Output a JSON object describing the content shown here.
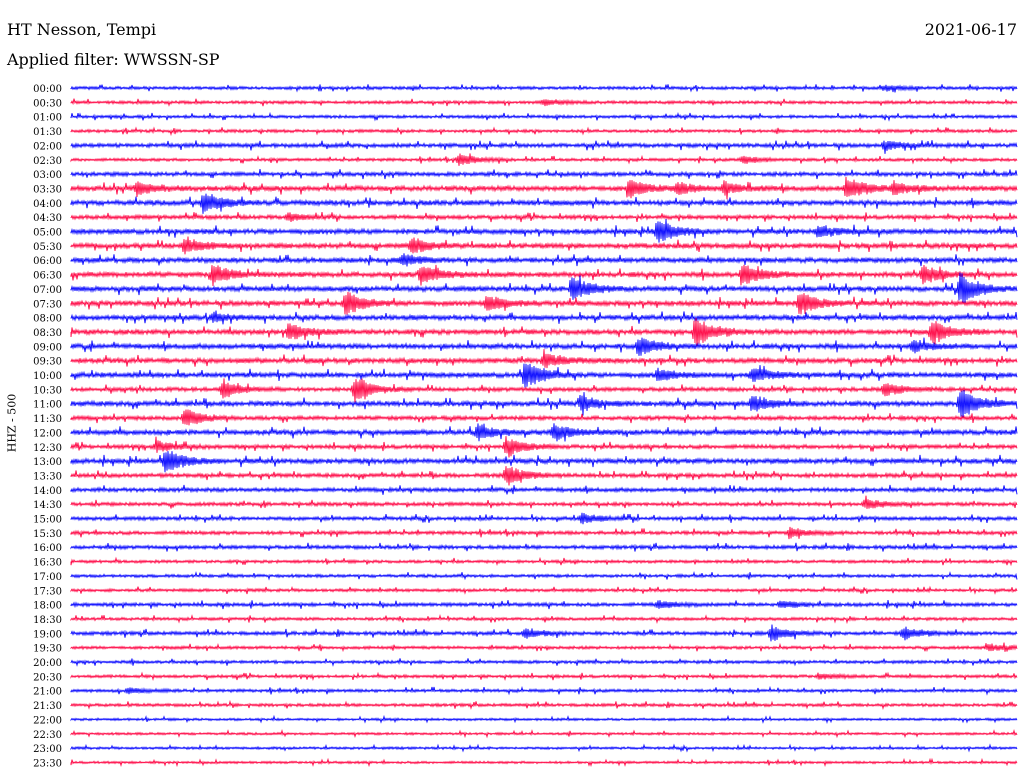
{
  "header": {
    "station": "HT Nesson, Tempi",
    "date": "2021-06-17",
    "filter": "Applied filter: WWSSN-SP"
  },
  "channel_label": "HHZ - 500",
  "colors": {
    "even_row": "#0000ff",
    "odd_row": "#ff0040"
  },
  "chart_data": {
    "type": "line",
    "title": "",
    "ylabel": "HHZ - 500",
    "row_labels": [
      "00:00",
      "00:30",
      "01:00",
      "01:30",
      "02:00",
      "02:30",
      "03:00",
      "03:30",
      "04:00",
      "04:30",
      "05:00",
      "05:30",
      "06:00",
      "06:30",
      "07:00",
      "07:30",
      "08:00",
      "08:30",
      "09:00",
      "09:30",
      "10:00",
      "10:30",
      "11:00",
      "11:30",
      "12:00",
      "12:30",
      "13:00",
      "13:30",
      "14:00",
      "14:30",
      "15:00",
      "15:30",
      "16:00",
      "16:30",
      "17:00",
      "17:30",
      "18:00",
      "18:30",
      "19:00",
      "19:30",
      "20:00",
      "20:30",
      "21:00",
      "21:30",
      "22:00",
      "22:30",
      "23:00",
      "23:30"
    ],
    "row_colors": "alternating blue / red",
    "noise_level": [
      1.5,
      1.5,
      1.5,
      1.5,
      2,
      1.5,
      2,
      2.5,
      2.5,
      2,
      2.5,
      2.5,
      2.5,
      2.5,
      2.5,
      2.5,
      2.5,
      2.5,
      2.5,
      2.5,
      2.5,
      2,
      2.5,
      2,
      2.5,
      2,
      2.5,
      2,
      2,
      1.8,
      1.8,
      1.8,
      1.8,
      1.5,
      1.5,
      1.5,
      1.8,
      1.5,
      1.8,
      1.5,
      1.5,
      1.5,
      1.5,
      1.5,
      1.2,
      1.2,
      1.2,
      1.2
    ],
    "bursts": [
      {
        "row": 0,
        "pos": 0.86,
        "amp": 3
      },
      {
        "row": 1,
        "pos": 0.5,
        "amp": 3
      },
      {
        "row": 4,
        "pos": 0.86,
        "amp": 5
      },
      {
        "row": 5,
        "pos": 0.41,
        "amp": 6
      },
      {
        "row": 5,
        "pos": 0.71,
        "amp": 4
      },
      {
        "row": 7,
        "pos": 0.07,
        "amp": 7
      },
      {
        "row": 7,
        "pos": 0.59,
        "amp": 9
      },
      {
        "row": 7,
        "pos": 0.64,
        "amp": 6
      },
      {
        "row": 7,
        "pos": 0.69,
        "amp": 6
      },
      {
        "row": 7,
        "pos": 0.82,
        "amp": 12
      },
      {
        "row": 7,
        "pos": 0.87,
        "amp": 6
      },
      {
        "row": 8,
        "pos": 0.14,
        "amp": 12
      },
      {
        "row": 9,
        "pos": 0.23,
        "amp": 4
      },
      {
        "row": 10,
        "pos": 0.62,
        "amp": 12
      },
      {
        "row": 10,
        "pos": 0.79,
        "amp": 6
      },
      {
        "row": 11,
        "pos": 0.12,
        "amp": 8
      },
      {
        "row": 11,
        "pos": 0.36,
        "amp": 8
      },
      {
        "row": 12,
        "pos": 0.35,
        "amp": 6
      },
      {
        "row": 13,
        "pos": 0.15,
        "amp": 10
      },
      {
        "row": 13,
        "pos": 0.37,
        "amp": 10
      },
      {
        "row": 13,
        "pos": 0.71,
        "amp": 12
      },
      {
        "row": 13,
        "pos": 0.9,
        "amp": 9
      },
      {
        "row": 14,
        "pos": 0.53,
        "amp": 12
      },
      {
        "row": 14,
        "pos": 0.94,
        "amp": 16
      },
      {
        "row": 15,
        "pos": 0.29,
        "amp": 12
      },
      {
        "row": 15,
        "pos": 0.44,
        "amp": 8
      },
      {
        "row": 15,
        "pos": 0.77,
        "amp": 12
      },
      {
        "row": 16,
        "pos": 0.15,
        "amp": 4
      },
      {
        "row": 17,
        "pos": 0.23,
        "amp": 9
      },
      {
        "row": 17,
        "pos": 0.66,
        "amp": 16
      },
      {
        "row": 17,
        "pos": 0.91,
        "amp": 12
      },
      {
        "row": 18,
        "pos": 0.6,
        "amp": 10
      },
      {
        "row": 18,
        "pos": 0.89,
        "amp": 6
      },
      {
        "row": 19,
        "pos": 0.5,
        "amp": 8
      },
      {
        "row": 20,
        "pos": 0.48,
        "amp": 14
      },
      {
        "row": 20,
        "pos": 0.62,
        "amp": 6
      },
      {
        "row": 20,
        "pos": 0.72,
        "amp": 8
      },
      {
        "row": 21,
        "pos": 0.16,
        "amp": 8
      },
      {
        "row": 21,
        "pos": 0.3,
        "amp": 13
      },
      {
        "row": 21,
        "pos": 0.86,
        "amp": 7
      },
      {
        "row": 22,
        "pos": 0.54,
        "amp": 8
      },
      {
        "row": 22,
        "pos": 0.72,
        "amp": 9
      },
      {
        "row": 22,
        "pos": 0.94,
        "amp": 16
      },
      {
        "row": 23,
        "pos": 0.12,
        "amp": 10
      },
      {
        "row": 24,
        "pos": 0.43,
        "amp": 8
      },
      {
        "row": 24,
        "pos": 0.51,
        "amp": 9
      },
      {
        "row": 25,
        "pos": 0.09,
        "amp": 6
      },
      {
        "row": 25,
        "pos": 0.46,
        "amp": 10
      },
      {
        "row": 26,
        "pos": 0.1,
        "amp": 12
      },
      {
        "row": 27,
        "pos": 0.46,
        "amp": 11
      },
      {
        "row": 29,
        "pos": 0.84,
        "amp": 5
      },
      {
        "row": 30,
        "pos": 0.54,
        "amp": 5
      },
      {
        "row": 31,
        "pos": 0.76,
        "amp": 5
      },
      {
        "row": 36,
        "pos": 0.62,
        "amp": 4
      },
      {
        "row": 36,
        "pos": 0.75,
        "amp": 4
      },
      {
        "row": 38,
        "pos": 0.48,
        "amp": 5
      },
      {
        "row": 38,
        "pos": 0.74,
        "amp": 7
      },
      {
        "row": 38,
        "pos": 0.88,
        "amp": 7
      },
      {
        "row": 39,
        "pos": 0.97,
        "amp": 4
      },
      {
        "row": 41,
        "pos": 0.79,
        "amp": 3
      },
      {
        "row": 42,
        "pos": 0.06,
        "amp": 3
      }
    ]
  }
}
